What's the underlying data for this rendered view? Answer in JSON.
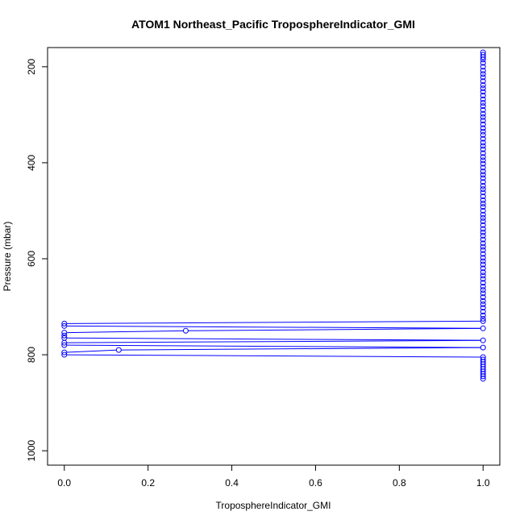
{
  "chart_data": {
    "type": "line",
    "title": "ATOM1 Northeast_Pacific TroposphereIndicator_GMI",
    "xlabel": "TroposphereIndicator_GMI",
    "ylabel": "Pressure (mbar)",
    "xlim": [
      -0.04,
      1.04
    ],
    "ylim": [
      1030,
      160
    ],
    "y_reversed": true,
    "xticks": [
      0.0,
      0.2,
      0.4,
      0.6,
      0.8,
      1.0
    ],
    "xtick_labels": [
      "0.0",
      "0.2",
      "0.4",
      "0.6",
      "0.8",
      "1.0"
    ],
    "yticks": [
      200,
      400,
      600,
      800,
      1000
    ],
    "ytick_labels": [
      "200",
      "400",
      "600",
      "800",
      "1000"
    ],
    "grid": false,
    "legend": "none",
    "color": "#0000ff",
    "series": [
      {
        "x": [
          1,
          1,
          1,
          1,
          1,
          1,
          1,
          1,
          1,
          1,
          1,
          1,
          1,
          1,
          1,
          1,
          1,
          1,
          1,
          1,
          1,
          1,
          1,
          1,
          1,
          1,
          1,
          1,
          1,
          1,
          1,
          1,
          1,
          1,
          1,
          1,
          1,
          1,
          1,
          1,
          1,
          1,
          1,
          1,
          1,
          1,
          1,
          1,
          1,
          1,
          1,
          1,
          1,
          1,
          1,
          1,
          1,
          1,
          1,
          1,
          1,
          1,
          1,
          1,
          1,
          1,
          1,
          1,
          1,
          1,
          1,
          1,
          1,
          1,
          1,
          1,
          1,
          0,
          0,
          1,
          0.29,
          0,
          0,
          0,
          1,
          0,
          0,
          1,
          0.13,
          0,
          0,
          1,
          1,
          1,
          1,
          1,
          1,
          1,
          1,
          1,
          1
        ],
        "y": [
          170,
          175,
          180,
          185,
          192,
          200,
          208,
          215,
          222,
          230,
          238,
          245,
          252,
          260,
          268,
          275,
          282,
          290,
          298,
          305,
          312,
          320,
          328,
          335,
          342,
          350,
          358,
          365,
          372,
          380,
          388,
          395,
          402,
          410,
          418,
          425,
          432,
          440,
          448,
          455,
          462,
          470,
          478,
          485,
          492,
          500,
          508,
          515,
          522,
          530,
          538,
          545,
          552,
          560,
          568,
          575,
          582,
          590,
          598,
          605,
          612,
          620,
          628,
          635,
          642,
          650,
          658,
          665,
          672,
          680,
          688,
          695,
          702,
          710,
          718,
          725,
          730,
          735,
          740,
          745,
          750,
          754,
          760,
          765,
          770,
          775,
          780,
          785,
          790,
          795,
          800,
          805,
          810,
          815,
          820,
          825,
          830,
          835,
          840,
          845,
          850
        ]
      }
    ]
  }
}
